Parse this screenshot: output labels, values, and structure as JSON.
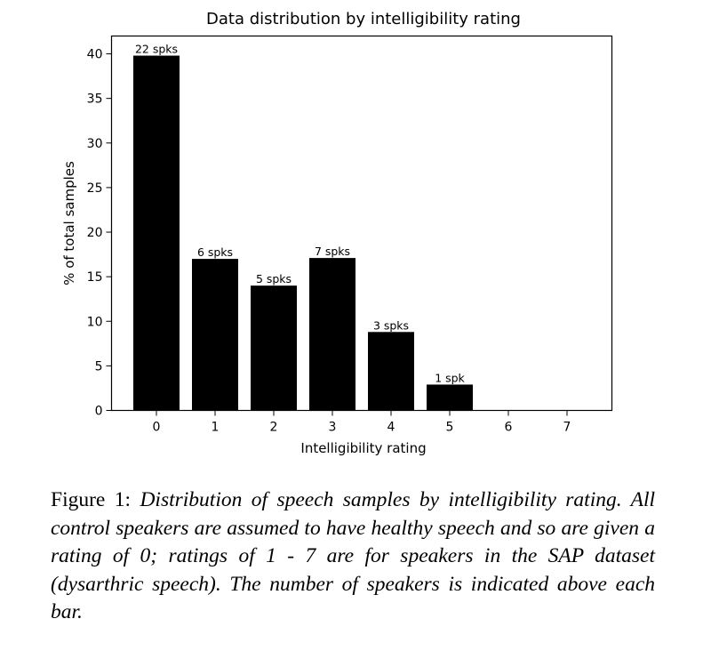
{
  "chart_data": {
    "type": "bar",
    "title": "Data distribution by intelligibility rating",
    "xlabel": "Intelligibility rating",
    "ylabel": "% of total samples",
    "categories": [
      "0",
      "1",
      "2",
      "3",
      "4",
      "5",
      "6",
      "7"
    ],
    "values": [
      39.8,
      17.0,
      14.0,
      17.1,
      8.8,
      2.9,
      0,
      0
    ],
    "bar_labels": [
      "22 spks",
      "6 spks",
      "5 spks",
      "7 spks",
      "3 spks",
      "1 spk",
      "",
      ""
    ],
    "ylim": [
      0,
      42
    ],
    "yticks": [
      0,
      5,
      10,
      15,
      20,
      25,
      30,
      35,
      40
    ],
    "bar_color": "#000000",
    "grid": false
  },
  "caption": {
    "label": "Figure 1:",
    "text": "Distribution of speech samples by intelligibility rating. All control speakers are assumed to have healthy speech and so are given a rating of 0; ratings of 1 - 7 are for speakers in the SAP dataset (dysarthric speech). The number of speakers is indicated above each bar."
  }
}
